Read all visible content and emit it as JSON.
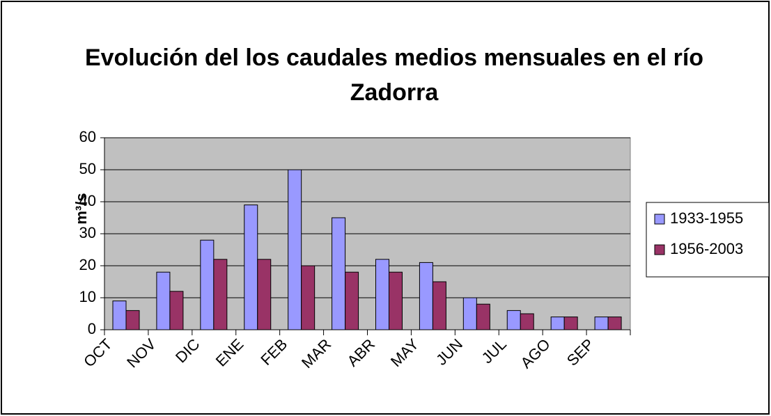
{
  "chart_data": {
    "type": "bar",
    "title": "Evolución del los caudales medios mensuales en el río Zadorra",
    "ylabel": "m³/s",
    "categories": [
      "OCT",
      "NOV",
      "DIC",
      "ENE",
      "FEB",
      "MAR",
      "ABR",
      "MAY",
      "JUN",
      "JUL",
      "AGO",
      "SEP"
    ],
    "series": [
      {
        "name": "1933-1955",
        "color": "#9999ff",
        "values": [
          9,
          18,
          28,
          39,
          50,
          35,
          22,
          21,
          10,
          6,
          4,
          4
        ]
      },
      {
        "name": "1956-2003",
        "color": "#993366",
        "values": [
          6,
          12,
          22,
          22,
          20,
          18,
          18,
          15,
          8,
          5,
          4,
          4
        ]
      }
    ],
    "ylim": [
      0,
      60
    ],
    "yticks": [
      0,
      10,
      20,
      30,
      40,
      50,
      60
    ],
    "grid": true,
    "legend": "right"
  }
}
